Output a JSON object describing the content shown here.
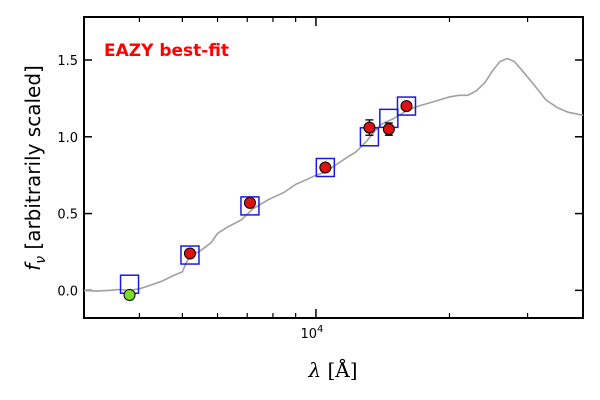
{
  "chart_data": {
    "type": "scatter",
    "title": "",
    "annotation": "EAZY best-fit",
    "annotation_color": "#ff0000",
    "xlabel": "λ [Å]",
    "ylabel": "f_ν [arbitrarily scaled]",
    "ylabel_prefix": "f",
    "ylabel_sub": "ν",
    "ylabel_rest": " [arbitrarily scaled]",
    "xlabel_symbol": "λ",
    "xlabel_unit": " [Å]",
    "xscale": "log",
    "xlim": [
      3000,
      40000
    ],
    "ylim": [
      -0.18,
      1.78
    ],
    "y_ticks": [
      0.0,
      0.5,
      1.0,
      1.5
    ],
    "y_tick_labels": [
      "0.0",
      "0.5",
      "1.0",
      "1.5"
    ],
    "x_major_ticks": [
      10000
    ],
    "x_tick_base": "10",
    "x_tick_exp": "4",
    "x_minor_ticks": [
      4000,
      5000,
      6000,
      7000,
      8000,
      9000,
      20000,
      30000
    ],
    "colors": {
      "template": "#a0a0a0",
      "model_box": "#1a1adc",
      "observed": "#dd1111",
      "upper_limit_point": "#7cde22",
      "marker_edge": "#000000"
    },
    "template_sed": [
      [
        3000,
        0.0
      ],
      [
        3200,
        -0.005
      ],
      [
        3400,
        0.0
      ],
      [
        3600,
        0.005
      ],
      [
        3800,
        0.0
      ],
      [
        4000,
        0.01
      ],
      [
        4200,
        0.03
      ],
      [
        4500,
        0.06
      ],
      [
        4800,
        0.1
      ],
      [
        5000,
        0.12
      ],
      [
        5100,
        0.18
      ],
      [
        5200,
        0.22
      ],
      [
        5500,
        0.26
      ],
      [
        5800,
        0.31
      ],
      [
        6000,
        0.37
      ],
      [
        6300,
        0.41
      ],
      [
        6800,
        0.46
      ],
      [
        7200,
        0.53
      ],
      [
        7800,
        0.59
      ],
      [
        8500,
        0.64
      ],
      [
        9000,
        0.69
      ],
      [
        9500,
        0.72
      ],
      [
        10000,
        0.75
      ],
      [
        10500,
        0.77
      ],
      [
        11000,
        0.81
      ],
      [
        11800,
        0.87
      ],
      [
        12300,
        0.9
      ],
      [
        13000,
        0.97
      ],
      [
        13500,
        1.03
      ],
      [
        14000,
        1.08
      ],
      [
        15000,
        1.12
      ],
      [
        16000,
        1.17
      ],
      [
        17000,
        1.2
      ],
      [
        18000,
        1.22
      ],
      [
        19000,
        1.24
      ],
      [
        20000,
        1.26
      ],
      [
        21000,
        1.27
      ],
      [
        22000,
        1.27
      ],
      [
        23000,
        1.3
      ],
      [
        24000,
        1.35
      ],
      [
        25000,
        1.43
      ],
      [
        26000,
        1.49
      ],
      [
        27000,
        1.51
      ],
      [
        28000,
        1.49
      ],
      [
        29000,
        1.44
      ],
      [
        31000,
        1.34
      ],
      [
        33000,
        1.24
      ],
      [
        35000,
        1.19
      ],
      [
        37000,
        1.16
      ],
      [
        40000,
        1.14
      ]
    ],
    "model_fluxes": [
      {
        "x": 3800,
        "y": 0.04
      },
      {
        "x": 5200,
        "y": 0.23
      },
      {
        "x": 7100,
        "y": 0.55
      },
      {
        "x": 10500,
        "y": 0.8
      },
      {
        "x": 13200,
        "y": 1.0
      },
      {
        "x": 14600,
        "y": 1.12
      },
      {
        "x": 16000,
        "y": 1.2
      }
    ],
    "observed_fluxes": [
      {
        "x": 3800,
        "y": -0.03,
        "err": 0.0,
        "kind": "limit"
      },
      {
        "x": 5200,
        "y": 0.24,
        "err": 0.01,
        "kind": "detection"
      },
      {
        "x": 7100,
        "y": 0.57,
        "err": 0.01,
        "kind": "detection"
      },
      {
        "x": 10500,
        "y": 0.8,
        "err": 0.01,
        "kind": "detection"
      },
      {
        "x": 13200,
        "y": 1.06,
        "err": 0.05,
        "kind": "detection"
      },
      {
        "x": 14600,
        "y": 1.05,
        "err": 0.04,
        "kind": "detection"
      },
      {
        "x": 16000,
        "y": 1.2,
        "err": 0.01,
        "kind": "detection"
      }
    ]
  }
}
